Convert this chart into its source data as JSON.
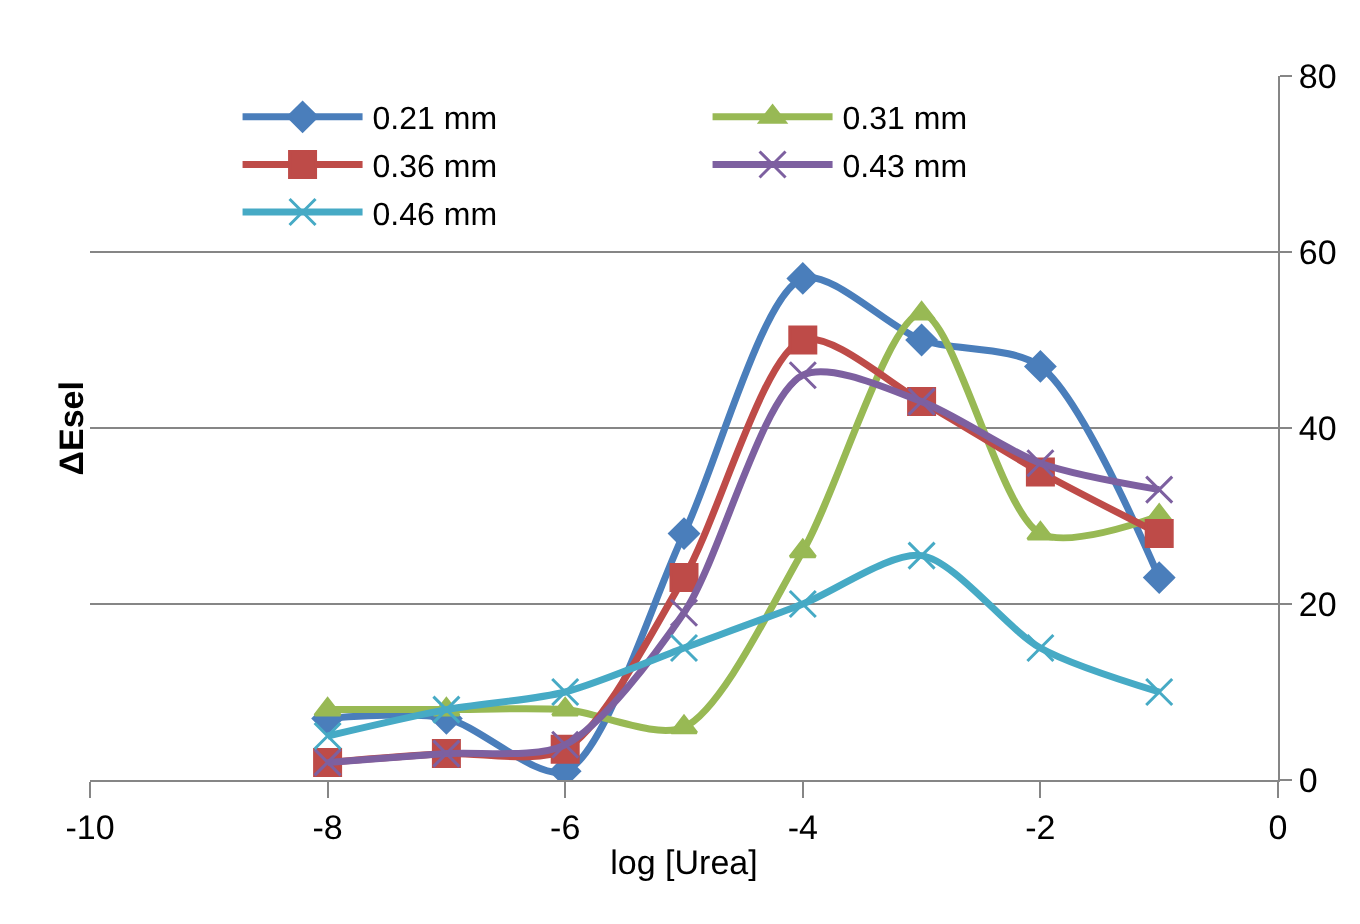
{
  "chart_data": {
    "type": "line",
    "xlabel": "log [Urea]",
    "ylabel": "ΔEsel",
    "x": [
      -8,
      -7,
      -6,
      -5,
      -4,
      -3,
      -2,
      -1
    ],
    "xlim": [
      -10,
      0
    ],
    "xticks": [
      -10,
      -8,
      -6,
      -4,
      -2,
      0
    ],
    "ylim": [
      0,
      80
    ],
    "yticks": [
      0,
      20,
      40,
      60,
      80
    ],
    "grid": "y",
    "legend": "top",
    "line_style": "solid",
    "series": [
      {
        "name": "0.21 mm",
        "color": "#4a7ebb",
        "marker": "diamond",
        "values": [
          7,
          7,
          1,
          28,
          57,
          50,
          47,
          23
        ]
      },
      {
        "name": "0.31 mm",
        "color": "#98b954",
        "marker": "triangle",
        "values": [
          8,
          8,
          8,
          6,
          26,
          53,
          28,
          30
        ]
      },
      {
        "name": "0.36 mm",
        "color": "#be4b48",
        "marker": "square",
        "values": [
          2,
          3,
          3.5,
          23,
          50,
          43,
          35,
          28
        ]
      },
      {
        "name": "0.43 mm",
        "color": "#7d60a0",
        "marker": "cross",
        "values": [
          2,
          3,
          4,
          19,
          46,
          43,
          36,
          33
        ]
      },
      {
        "name": "0.46 mm",
        "color": "#46aac5",
        "marker": "cross",
        "values": [
          5,
          8,
          10,
          15,
          20,
          25.5,
          15,
          10
        ]
      }
    ]
  }
}
